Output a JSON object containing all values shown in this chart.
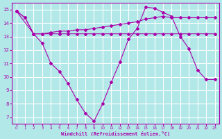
{
  "xlabel": "Windchill (Refroidissement éolien,°C)",
  "bg_color": "#b2e8e8",
  "grid_color": "#ffffff",
  "line_color": "#aa00aa",
  "ylim": [
    6.5,
    15.5
  ],
  "xlim": [
    -0.5,
    23.5
  ],
  "yticks": [
    7,
    8,
    9,
    10,
    11,
    12,
    13,
    14,
    15
  ],
  "xticks": [
    0,
    1,
    2,
    3,
    4,
    5,
    6,
    7,
    8,
    9,
    10,
    11,
    12,
    13,
    14,
    15,
    16,
    17,
    18,
    19,
    20,
    21,
    22,
    23
  ],
  "series1_x": [
    0,
    1,
    2,
    3,
    4,
    5,
    6,
    7,
    8,
    9,
    10,
    11,
    12,
    13,
    14,
    15,
    16,
    17,
    18,
    19,
    20,
    21,
    22,
    23
  ],
  "series1_y": [
    14.9,
    14.4,
    13.2,
    12.5,
    11.0,
    10.4,
    9.5,
    8.3,
    7.3,
    6.7,
    8.0,
    9.6,
    11.1,
    12.8,
    13.6,
    15.2,
    15.1,
    14.8,
    14.5,
    13.0,
    12.1,
    10.5,
    9.8,
    9.8
  ],
  "series2_x": [
    0,
    2,
    3,
    4,
    5,
    6,
    7,
    8,
    9,
    10,
    11,
    12,
    13,
    14,
    15,
    16,
    17,
    18,
    19,
    20,
    21,
    22,
    23
  ],
  "series2_y": [
    14.9,
    13.2,
    13.2,
    13.2,
    13.2,
    13.2,
    13.2,
    13.2,
    13.2,
    13.2,
    13.2,
    13.2,
    13.2,
    13.2,
    13.2,
    13.2,
    13.2,
    13.2,
    13.2,
    13.2,
    13.2,
    13.2,
    13.2
  ],
  "series3_x": [
    0,
    1,
    2,
    3,
    4,
    5,
    6,
    7,
    8,
    9,
    10,
    11,
    12,
    13,
    14,
    15,
    16,
    17,
    18,
    19,
    20,
    21,
    22,
    23
  ],
  "series3_y": [
    14.9,
    14.4,
    13.2,
    13.2,
    13.3,
    13.4,
    13.4,
    13.5,
    13.5,
    13.6,
    13.7,
    13.8,
    13.9,
    14.0,
    14.1,
    14.3,
    14.4,
    14.5,
    14.4,
    14.4,
    14.4,
    14.4,
    14.4,
    14.4
  ]
}
